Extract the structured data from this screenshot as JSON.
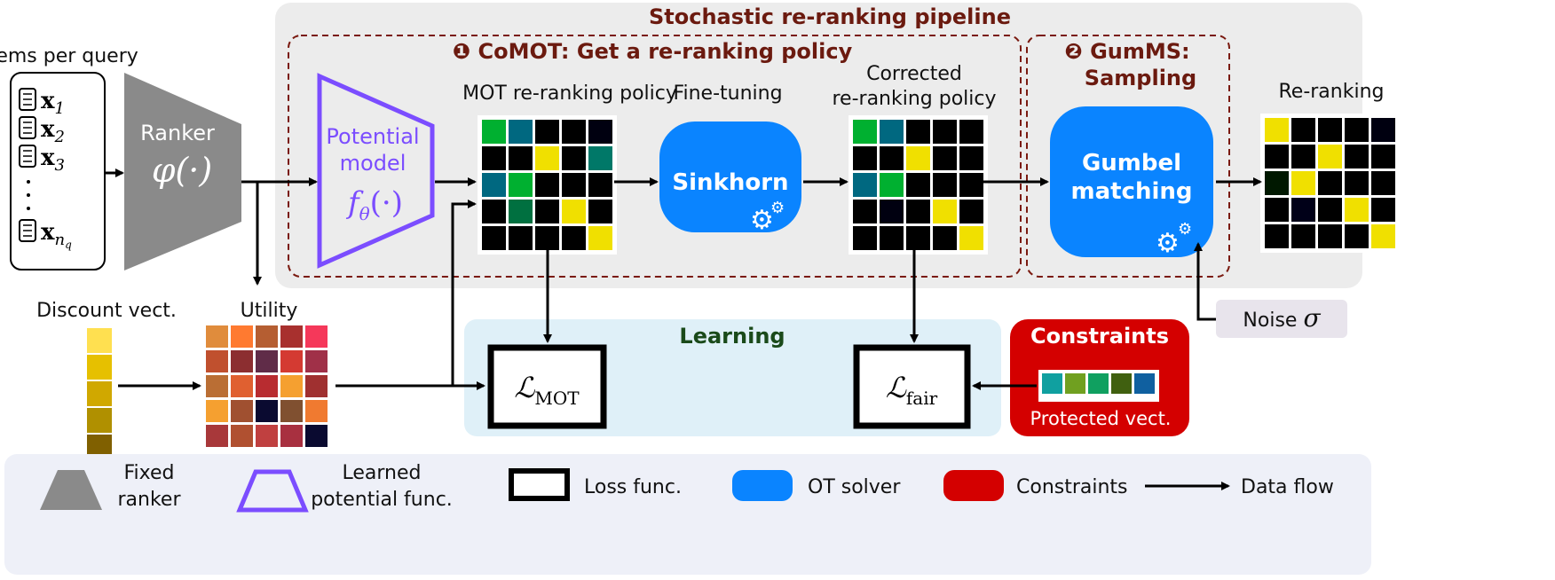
{
  "items": {
    "label": "Items per query",
    "entries": [
      "x",
      "x",
      "x",
      "x"
    ],
    "subscripts": [
      "1",
      "2",
      "3",
      "n"
    ],
    "last_sub_sub": "q"
  },
  "ranker": {
    "label": "Ranker",
    "func": "φ(·)"
  },
  "pipeline": {
    "title": "Stochastic re-ranking pipeline",
    "comot": {
      "num": "❶",
      "title": "CoMOT: Get a re-ranking policy"
    },
    "gumms": {
      "num": "❷",
      "title_line1": "GumMS:",
      "title_line2": "Sampling"
    }
  },
  "potential_model": {
    "line1": "Potential",
    "line2": "model",
    "func": "f",
    "func_sub": "θ",
    "func_rest": "(·)"
  },
  "mot_label": "MOT re-ranking policy",
  "finetune_label": "Fine-tuning",
  "sinkhorn_label": "Sinkhorn",
  "corrected_label": {
    "line1": "Corrected",
    "line2": "re-ranking policy"
  },
  "gumbel_label": {
    "line1": "Gumbel",
    "line2": "matching"
  },
  "reranking_label": "Re-ranking",
  "noise_label": "Noise",
  "noise_symbol": "σ",
  "discount_label": "Discount vect.",
  "utility_label": "Utility",
  "learning_label": "Learning",
  "loss_mot": {
    "symbol": "ℒ",
    "sub": "MOT"
  },
  "loss_fair": {
    "symbol": "ℒ",
    "sub": "fair"
  },
  "constraints": {
    "title": "Constraints",
    "protected_label": "Protected vect.",
    "colors": [
      "#10a0a0",
      "#70a020",
      "#10a060",
      "#406010",
      "#1060a0"
    ]
  },
  "colors": {
    "ot_solver": "#0a84ff",
    "constraints": "#d40000",
    "potential": "#7b4dff",
    "ranker": "#8a8a8a",
    "title": "#6b1a0f",
    "learning": "#1a4a1a"
  },
  "matrices": {
    "mot": [
      [
        "#00b030",
        "#006880",
        "#000",
        "#000",
        "#000010"
      ],
      [
        "#000",
        "#000",
        "#f0e000",
        "#000",
        "#007868"
      ],
      [
        "#006880",
        "#00b030",
        "#000",
        "#000",
        "#000"
      ],
      [
        "#000",
        "#007040",
        "#000",
        "#f0e000",
        "#000"
      ],
      [
        "#000",
        "#000",
        "#000",
        "#000",
        "#f0e000"
      ]
    ],
    "corrected": [
      [
        "#00b030",
        "#006880",
        "#000",
        "#000",
        "#000"
      ],
      [
        "#000",
        "#000",
        "#f0e000",
        "#000",
        "#000"
      ],
      [
        "#006880",
        "#00b030",
        "#000",
        "#000",
        "#000"
      ],
      [
        "#000",
        "#000010",
        "#000",
        "#f0e000",
        "#000"
      ],
      [
        "#000",
        "#000",
        "#000",
        "#000",
        "#f0e000"
      ]
    ],
    "reranking": [
      [
        "#f0e000",
        "#000",
        "#000",
        "#000",
        "#000010"
      ],
      [
        "#000",
        "#000",
        "#f0e000",
        "#000",
        "#000"
      ],
      [
        "#001800",
        "#f0e000",
        "#000",
        "#000",
        "#000"
      ],
      [
        "#000",
        "#000018",
        "#000",
        "#f0e000",
        "#000"
      ],
      [
        "#000",
        "#000",
        "#000",
        "#000",
        "#f0e000"
      ]
    ],
    "utility": [
      [
        "#e08c3c",
        "#ff7a30",
        "#b55e32",
        "#a8302e",
        "#f5385a"
      ],
      [
        "#c0502e",
        "#8c2e30",
        "#602c48",
        "#d43a32",
        "#a03048"
      ],
      [
        "#ba6e34",
        "#e06030",
        "#b82c30",
        "#f5a030",
        "#a03030"
      ],
      [
        "#f5a030",
        "#a05030",
        "#0a0a30",
        "#805030",
        "#f07a30"
      ],
      [
        "#a8383a",
        "#b05030",
        "#c04040",
        "#a83040",
        "#0a0a30"
      ]
    ],
    "discount": [
      "#ffe050",
      "#e6c000",
      "#d0a800",
      "#b09000",
      "#806000"
    ]
  },
  "legend": {
    "fixed": [
      "Fixed",
      "ranker"
    ],
    "learned": [
      "Learned",
      "potential func."
    ],
    "loss": "Loss func.",
    "ot": "OT solver",
    "constraints": "Constraints",
    "flow": "Data flow"
  }
}
